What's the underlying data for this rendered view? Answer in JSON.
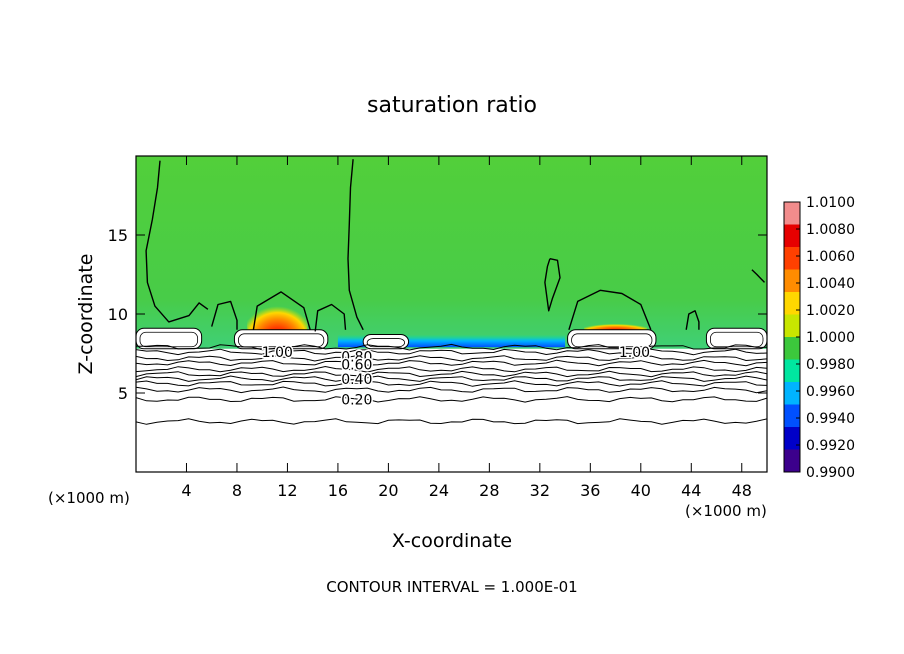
{
  "chart_data": {
    "type": "heatmap",
    "title": "saturation ratio",
    "xlabel": "X-coordinate",
    "ylabel": "Z-coordinate",
    "x_unit": "(×1000 m)",
    "y_unit": "(×1000 m)",
    "footer": "CONTOUR INTERVAL = 1.000E-01",
    "xlim": [
      0,
      50
    ],
    "ylim": [
      0,
      20
    ],
    "x_ticks": [
      4,
      8,
      12,
      16,
      20,
      24,
      28,
      32,
      36,
      40,
      44,
      48
    ],
    "x_tick_labels": [
      "4",
      "8",
      "12",
      "16",
      "20",
      "24",
      "28",
      "32",
      "36",
      "40",
      "44",
      "48"
    ],
    "y_ticks": [
      5,
      10,
      15
    ],
    "y_tick_labels": [
      "5",
      "10",
      "15"
    ],
    "colorbar": {
      "labels": [
        "1.0100",
        "1.0080",
        "1.0060",
        "1.0040",
        "1.0020",
        "1.0000",
        "0.9980",
        "0.9960",
        "0.9940",
        "0.9920",
        "0.9900"
      ],
      "colors": [
        "#f28c8c",
        "#e60000",
        "#ff4000",
        "#ff8c00",
        "#ffd700",
        "#c8e600",
        "#3cc83c",
        "#00e6a0",
        "#00b4ff",
        "#0050ff",
        "#0000c8",
        "#3c008c"
      ]
    },
    "contour_labels": [
      {
        "text": "1.00",
        "x": 11.2,
        "z": 7.6
      },
      {
        "text": "1.00",
        "x": 39.5,
        "z": 7.6
      },
      {
        "text": "0.80",
        "x": 17.5,
        "z": 7.3
      },
      {
        "text": "0.60",
        "x": 17.5,
        "z": 6.8
      },
      {
        "text": "0.40",
        "x": 17.5,
        "z": 5.9
      },
      {
        "text": "0.20",
        "x": 17.5,
        "z": 4.6
      }
    ],
    "stable_contours_z": [
      7.9,
      7.6,
      7.2,
      6.9,
      6.5,
      6.2,
      5.9,
      5.6,
      5.2,
      4.6,
      3.2
    ],
    "unsaturated_regions": [
      {
        "x0": 0,
        "x1": 5.2,
        "z0": 7.8,
        "z1": 9.1
      },
      {
        "x0": 7.8,
        "x1": 15.2,
        "z0": 7.8,
        "z1": 9.0
      },
      {
        "x0": 18.0,
        "x1": 21.6,
        "z0": 7.8,
        "z1": 8.7
      },
      {
        "x0": 34.2,
        "x1": 41.2,
        "z0": 7.8,
        "z1": 9.0
      },
      {
        "x0": 45.2,
        "x1": 50,
        "z0": 7.8,
        "z1": 9.1
      }
    ],
    "supersaturated_cores": [
      {
        "x": 11.2,
        "z": 9.3,
        "rx": 2.4,
        "rz": 1.7
      },
      {
        "x": 38.0,
        "z": 9.1,
        "rx": 2.5,
        "rz": 0.4
      }
    ],
    "subsaturated_layer": {
      "x0": 16.0,
      "x1": 34.0,
      "z": 7.9
    },
    "cloud_outlines": [
      {
        "points": [
          [
            1.9,
            19.7
          ],
          [
            1.7,
            18
          ],
          [
            1.3,
            16
          ],
          [
            0.8,
            14
          ],
          [
            0.9,
            12
          ],
          [
            1.5,
            10.5
          ],
          [
            2.6,
            9.5
          ],
          [
            4.2,
            9.9
          ],
          [
            5.0,
            10.7
          ],
          [
            5.7,
            10.3
          ]
        ]
      },
      {
        "points": [
          [
            17.2,
            19.8
          ],
          [
            17.0,
            18
          ],
          [
            16.9,
            15.7
          ],
          [
            16.8,
            13.5
          ],
          [
            16.9,
            11.5
          ],
          [
            17.5,
            9.8
          ],
          [
            18.0,
            9.0
          ]
        ]
      },
      {
        "points": [
          [
            9.3,
            9.0
          ],
          [
            9.6,
            10.5
          ],
          [
            11.5,
            11.4
          ],
          [
            13.3,
            10.4
          ],
          [
            13.8,
            9.0
          ]
        ]
      },
      {
        "points": [
          [
            14.2,
            8.9
          ],
          [
            14.4,
            10.2
          ],
          [
            15.5,
            10.6
          ],
          [
            16.5,
            10.0
          ],
          [
            16.6,
            9.0
          ]
        ]
      },
      {
        "points": [
          [
            6.0,
            9.2
          ],
          [
            6.5,
            10.6
          ],
          [
            7.5,
            10.8
          ],
          [
            8.0,
            9.6
          ],
          [
            8.0,
            9.0
          ]
        ]
      },
      {
        "points": [
          [
            34.3,
            9.0
          ],
          [
            35.0,
            10.8
          ],
          [
            36.8,
            11.5
          ],
          [
            38.5,
            11.3
          ],
          [
            40.0,
            10.6
          ],
          [
            40.8,
            9.0
          ]
        ]
      },
      {
        "points": [
          [
            32.8,
            13.5
          ],
          [
            33.4,
            13.4
          ],
          [
            33.6,
            12.3
          ],
          [
            33.0,
            11.0
          ],
          [
            32.7,
            10.2
          ],
          [
            32.4,
            12.0
          ],
          [
            32.6,
            13.0
          ],
          [
            32.8,
            13.5
          ]
        ]
      },
      {
        "points": [
          [
            43.6,
            9.0
          ],
          [
            43.8,
            10.0
          ],
          [
            44.3,
            10.2
          ],
          [
            44.6,
            9.5
          ],
          [
            44.6,
            9.0
          ]
        ]
      },
      {
        "points": [
          [
            48.8,
            12.8
          ],
          [
            49.2,
            12.5
          ],
          [
            49.8,
            12.0
          ]
        ]
      }
    ]
  }
}
